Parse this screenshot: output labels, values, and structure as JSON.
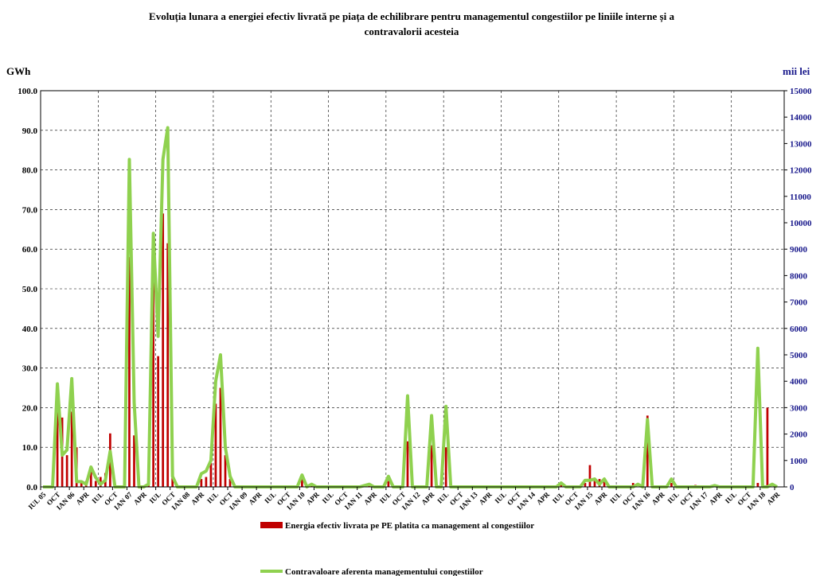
{
  "chart_data": {
    "type": "bar",
    "title_line1": "Evoluția lunara a energiei efectiv livrată pe piața de echilibrare pentru managementul congestiilor pe liniile interne și a",
    "title_line2": "contravalorii acesteia",
    "ylabel_left": "GWh",
    "ylabel_right": "mii lei",
    "ylim_left": [
      0,
      100
    ],
    "ylim_right": [
      0,
      15000
    ],
    "left_ticks": [
      "0.0",
      "10.0",
      "20.0",
      "30.0",
      "40.0",
      "50.0",
      "60.0",
      "70.0",
      "80.0",
      "90.0",
      "100.0"
    ],
    "right_ticks": [
      "0",
      "1000",
      "2000",
      "3000",
      "4000",
      "5000",
      "6000",
      "7000",
      "8000",
      "9000",
      "10000",
      "11000",
      "12000",
      "13000",
      "14000",
      "15000"
    ],
    "x_tick_labels": [
      "IUL 05",
      "OCT",
      "IAN 06",
      "APR",
      "IUL",
      "OCT",
      "IAN 07",
      "APR",
      "IUL",
      "OCT",
      "IAN 08",
      "APR",
      "IUL",
      "OCT",
      "IAN 09",
      "APR",
      "IUL",
      "OCT",
      "IAN 10",
      "APR",
      "IUL",
      "OCT",
      "IAN 11",
      "APR",
      "IUL",
      "OCT",
      "IAN 12",
      "APR",
      "IUL",
      "OCT",
      "IAN 13",
      "APR",
      "IUL",
      "OCT",
      "IAN 14",
      "APR",
      "IUL",
      "OCT",
      "IAN 15",
      "APR",
      "IUL",
      "OCT",
      "IAN 16",
      "APR",
      "IUL",
      "OCT",
      "IAN 17",
      "APR",
      "IUL",
      "OCT",
      "IAN 18",
      "APR"
    ],
    "legend_placement": "bottom",
    "grid": true,
    "series": [
      {
        "name": "Energia efectiv livrata pe PE platita ca management al congestiilor",
        "color": "#c00000",
        "axis": "left",
        "values": [
          0,
          0,
          0,
          21,
          17.5,
          8,
          19,
          10,
          1.5,
          1.5,
          4,
          1.5,
          2.5,
          3.5,
          13.5,
          0,
          0,
          0,
          58,
          13,
          0,
          0,
          1,
          60,
          33,
          69,
          61.5,
          2.5,
          0,
          0,
          0,
          0,
          0,
          2,
          2.5,
          6,
          21,
          25,
          8,
          2,
          0,
          0,
          0,
          0,
          0,
          0,
          0,
          0,
          0,
          0,
          0,
          0,
          0,
          0,
          2,
          0,
          0.5,
          0,
          0,
          0,
          0,
          0,
          0,
          0,
          0,
          0,
          0,
          0.5,
          0.5,
          0,
          0,
          0,
          1.5,
          0,
          0,
          0,
          11.5,
          0,
          0,
          0,
          0,
          10.5,
          0,
          0,
          10,
          0,
          0,
          0,
          0,
          0,
          0,
          0,
          0,
          0,
          0,
          0,
          0,
          0,
          0,
          0,
          0,
          0,
          0,
          0,
          0,
          0,
          0,
          0,
          0.5,
          0,
          0,
          0,
          0,
          1,
          5.5,
          1.5,
          2,
          1.5,
          0,
          0,
          0,
          0,
          0,
          1,
          0,
          0,
          18,
          0,
          0,
          0,
          0,
          1,
          0,
          0,
          0,
          0,
          0.5,
          0,
          0,
          0,
          0,
          0,
          0,
          0,
          0,
          0,
          0,
          0,
          0,
          1,
          0,
          20,
          0,
          0,
          0
        ]
      },
      {
        "name": "Contravaloare aferenta managementului congestiilor",
        "color": "#8fd14f",
        "axis": "right",
        "values": [
          0,
          0,
          0,
          3900,
          1200,
          1400,
          4100,
          200,
          200,
          100,
          750,
          350,
          100,
          250,
          1350,
          0,
          0,
          0,
          12400,
          3200,
          0,
          0,
          100,
          9600,
          5700,
          12400,
          13600,
          400,
          0,
          0,
          0,
          0,
          0,
          500,
          600,
          1000,
          4000,
          5000,
          1500,
          400,
          0,
          0,
          0,
          0,
          0,
          0,
          0,
          0,
          0,
          0,
          0,
          0,
          0,
          0,
          450,
          0,
          100,
          0,
          0,
          0,
          0,
          0,
          0,
          0,
          0,
          0,
          0,
          50,
          100,
          0,
          0,
          0,
          400,
          0,
          0,
          0,
          3450,
          0,
          0,
          0,
          0,
          2700,
          0,
          0,
          3050,
          0,
          0,
          0,
          0,
          0,
          0,
          0,
          0,
          0,
          0,
          0,
          0,
          0,
          0,
          0,
          0,
          0,
          0,
          0,
          0,
          0,
          0,
          0,
          150,
          0,
          0,
          0,
          0,
          250,
          250,
          300,
          100,
          300,
          0,
          0,
          0,
          0,
          0,
          0,
          100,
          0,
          2550,
          0,
          0,
          0,
          0,
          300,
          0,
          0,
          0,
          0,
          0,
          0,
          0,
          0,
          50,
          0,
          0,
          0,
          0,
          0,
          0,
          0,
          0,
          5250,
          0,
          0,
          100,
          0
        ]
      }
    ]
  }
}
